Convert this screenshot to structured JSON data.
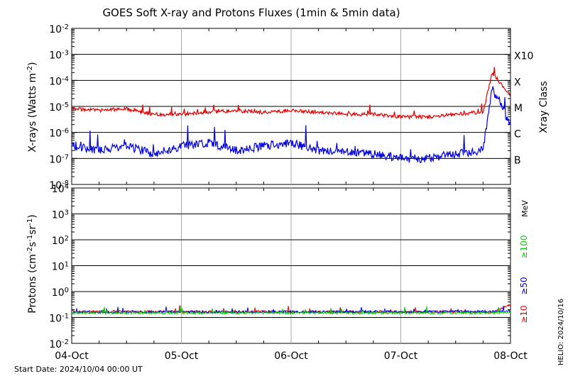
{
  "chart_data": [
    {
      "type": "line",
      "panel": "xray",
      "title": "GOES Soft X-ray and Protons Fluxes   (1min & 5min data)",
      "ylabel": "X-rays (Watts m^-2)",
      "y_scale": "log",
      "ylim": [
        1e-08,
        0.01
      ],
      "y_ticks": [
        {
          "base": "10",
          "exp": "-8"
        },
        {
          "base": "10",
          "exp": "-7"
        },
        {
          "base": "10",
          "exp": "-6"
        },
        {
          "base": "10",
          "exp": "-5"
        },
        {
          "base": "10",
          "exp": "-4"
        },
        {
          "base": "10",
          "exp": "-3"
        },
        {
          "base": "10",
          "exp": "-2"
        }
      ],
      "right_axis": {
        "label": "Xray Class",
        "classes": [
          {
            "label": "B",
            "value": 1e-07
          },
          {
            "label": "C",
            "value": 1e-06
          },
          {
            "label": "M",
            "value": 1e-05
          },
          {
            "label": "X",
            "value": 0.0001
          },
          {
            "label": "X10",
            "value": 0.001
          }
        ]
      },
      "xlim": [
        "2024-10-04 00:00",
        "2024-10-08 00:00"
      ],
      "series": [
        {
          "band": "long",
          "color": "#e00000",
          "points": [
            [
              "2024-10-04 00:00",
              8e-06
            ],
            [
              "2024-10-04 06:00",
              7e-06
            ],
            [
              "2024-10-04 12:00",
              8e-06
            ],
            [
              "2024-10-04 18:00",
              5e-06
            ],
            [
              "2024-10-05 00:00",
              5e-06
            ],
            [
              "2024-10-05 06:00",
              6e-06
            ],
            [
              "2024-10-05 12:00",
              7e-06
            ],
            [
              "2024-10-05 18:00",
              6e-06
            ],
            [
              "2024-10-06 00:00",
              7e-06
            ],
            [
              "2024-10-06 06:00",
              6e-06
            ],
            [
              "2024-10-06 12:00",
              5e-06
            ],
            [
              "2024-10-06 18:00",
              5e-06
            ],
            [
              "2024-10-07 00:00",
              4e-06
            ],
            [
              "2024-10-07 06:00",
              4e-06
            ],
            [
              "2024-10-07 12:00",
              5e-06
            ],
            [
              "2024-10-07 18:00",
              6e-06
            ],
            [
              "2024-10-07 20:00",
              0.0002
            ],
            [
              "2024-10-08 00:00",
              2.5e-05
            ]
          ]
        },
        {
          "band": "short",
          "color": "#0000e0",
          "points": [
            [
              "2024-10-04 00:00",
              3e-07
            ],
            [
              "2024-10-04 06:00",
              2e-07
            ],
            [
              "2024-10-04 12:00",
              3e-07
            ],
            [
              "2024-10-04 18:00",
              1.5e-07
            ],
            [
              "2024-10-05 00:00",
              3e-07
            ],
            [
              "2024-10-05 06:00",
              4e-07
            ],
            [
              "2024-10-05 12:00",
              2e-07
            ],
            [
              "2024-10-05 18:00",
              3e-07
            ],
            [
              "2024-10-06 00:00",
              4e-07
            ],
            [
              "2024-10-06 06:00",
              2e-07
            ],
            [
              "2024-10-06 12:00",
              2e-07
            ],
            [
              "2024-10-06 18:00",
              1.5e-07
            ],
            [
              "2024-10-07 00:00",
              1e-07
            ],
            [
              "2024-10-07 06:00",
              1e-07
            ],
            [
              "2024-10-07 12:00",
              1.5e-07
            ],
            [
              "2024-10-07 18:00",
              2e-07
            ],
            [
              "2024-10-07 20:00",
              5e-05
            ],
            [
              "2024-10-08 00:00",
              2e-06
            ]
          ]
        }
      ]
    },
    {
      "type": "line",
      "panel": "protons",
      "ylabel": "Protons (cm^-2 s^-1 sr^-1)",
      "y_scale": "log",
      "ylim": [
        0.01,
        10000
      ],
      "y_ticks": [
        {
          "base": "10",
          "exp": "-2"
        },
        {
          "base": "10",
          "exp": "-1"
        },
        {
          "base": "10",
          "exp": "0"
        },
        {
          "base": "10",
          "exp": "1"
        },
        {
          "base": "10",
          "exp": "2"
        },
        {
          "base": "10",
          "exp": "3"
        },
        {
          "base": "10",
          "exp": "4"
        }
      ],
      "threshold_line": 10,
      "unit_label": "MeV",
      "x_tick_labels": [
        "04-Oct",
        "05-Oct",
        "06-Oct",
        "07-Oct",
        "08-Oct"
      ],
      "footer_left": "Start Date: 2024/10/04 00:00 UT",
      "side_stamp": "HELIO: 2024/10/16",
      "series": [
        {
          "name": "≥10",
          "color": "#e00000",
          "level": 0.17,
          "points": [
            [
              "2024-10-04 00:00",
              0.17
            ],
            [
              "2024-10-07 20:00",
              0.16
            ],
            [
              "2024-10-08 00:00",
              0.3
            ]
          ]
        },
        {
          "name": "≥50",
          "color": "#0000e0",
          "level": 0.16,
          "points": [
            [
              "2024-10-04 00:00",
              0.16
            ],
            [
              "2024-10-08 00:00",
              0.17
            ]
          ]
        },
        {
          "name": "≥100",
          "color": "#00d000",
          "level": 0.15,
          "points": [
            [
              "2024-10-04 00:00",
              0.15
            ],
            [
              "2024-10-08 00:00",
              0.15
            ]
          ]
        }
      ]
    }
  ]
}
